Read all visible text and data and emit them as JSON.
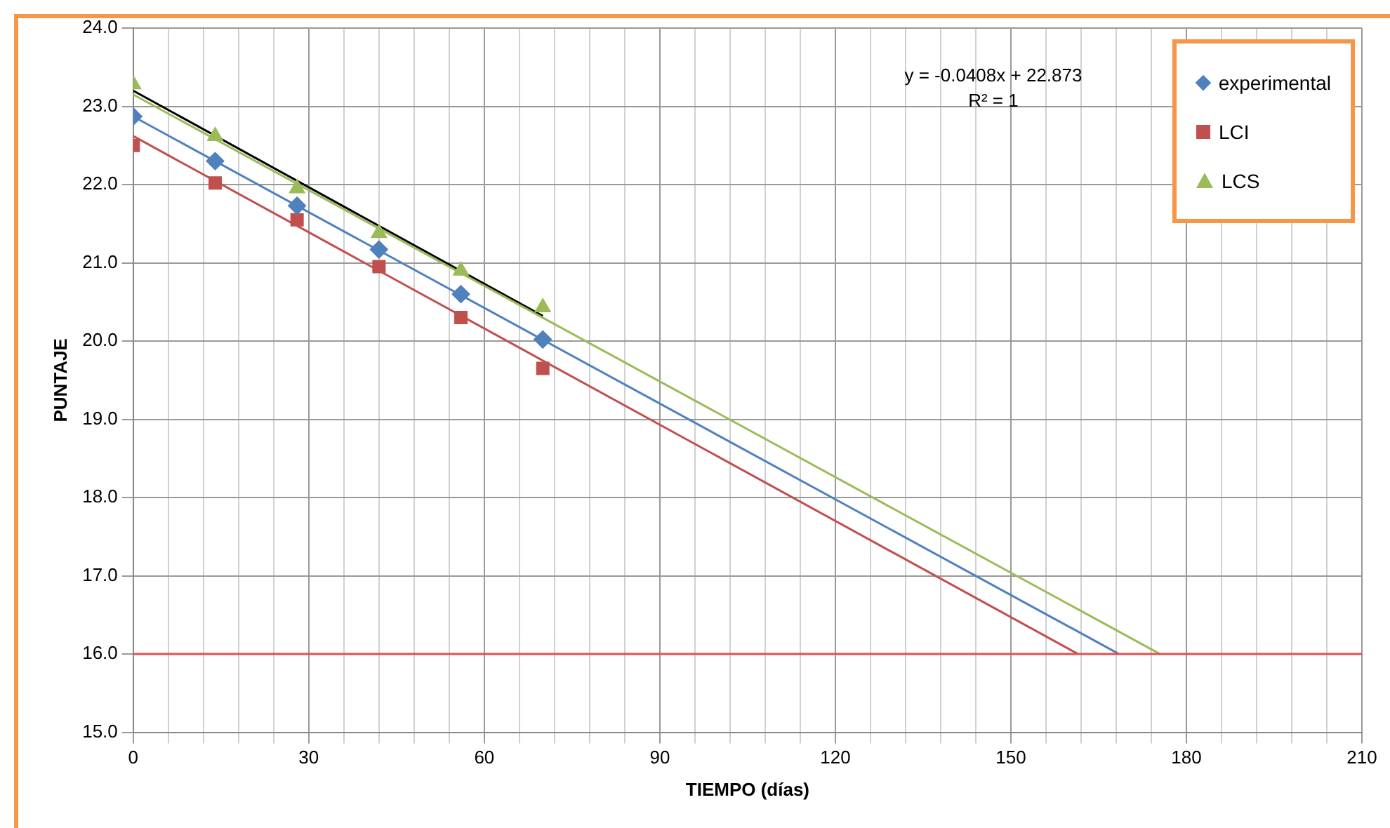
{
  "chart_data": {
    "type": "scatter",
    "xlabel": "TIEMPO (días)",
    "ylabel": "PUNTAJE",
    "xlim": [
      0,
      210
    ],
    "xticks": [
      0,
      {
        "value": 6,
        "label": null
      },
      {
        "value": 12,
        "label": null
      },
      {
        "value": 18,
        "label": null
      },
      {
        "value": 24,
        "label": null
      },
      30,
      {
        "value": 36,
        "label": null
      },
      {
        "value": 42,
        "label": null
      },
      {
        "value": 48,
        "label": null
      },
      {
        "value": 54,
        "label": null
      },
      60,
      {
        "value": 66,
        "label": null
      },
      {
        "value": 72,
        "label": null
      },
      {
        "value": 78,
        "label": null
      },
      {
        "value": 84,
        "label": null
      },
      90,
      {
        "value": 96,
        "label": null
      },
      {
        "value": 102,
        "label": null
      },
      {
        "value": 108,
        "label": null
      },
      {
        "value": 114,
        "label": null
      },
      120,
      {
        "value": 126,
        "label": null
      },
      {
        "value": 132,
        "label": null
      },
      {
        "value": 138,
        "label": null
      },
      {
        "value": 144,
        "label": null
      },
      150,
      {
        "value": 156,
        "label": null
      },
      {
        "value": 162,
        "label": null
      },
      {
        "value": 168,
        "label": null
      },
      {
        "value": 174,
        "label": null
      },
      180,
      {
        "value": 186,
        "label": null
      },
      {
        "value": 192,
        "label": null
      },
      {
        "value": 198,
        "label": null
      },
      {
        "value": 204,
        "label": null
      },
      210
    ],
    "ylim": [
      15,
      24
    ],
    "yticks": [
      {
        "value": 15,
        "label": "15.0"
      },
      {
        "value": 16,
        "label": "16.0"
      },
      {
        "value": 17,
        "label": "17.0"
      },
      {
        "value": 18,
        "label": "18.0"
      },
      {
        "value": 19,
        "label": "19.0"
      },
      {
        "value": 20,
        "label": "20.0"
      },
      {
        "value": 21,
        "label": "21.0"
      },
      {
        "value": 22,
        "label": "22.0"
      },
      {
        "value": 23,
        "label": "23.0"
      },
      {
        "value": 24,
        "label": "24.0"
      }
    ],
    "grid": true,
    "legend": "top right",
    "annotations": [
      "y = -0.0408x + 22.873",
      "R² = 1"
    ],
    "ref_lines": [
      {
        "axis": "y",
        "value": 16,
        "label": null,
        "color": "#e05050"
      }
    ],
    "series": [
      {
        "name": "experimental",
        "marker": "diamond",
        "color": "#4f81bd",
        "x": [
          0,
          14,
          28,
          42,
          56,
          70
        ],
        "values": [
          22.87,
          22.3,
          21.73,
          21.17,
          20.6,
          20.02
        ]
      },
      {
        "name": "LCI",
        "marker": "square",
        "color": "#c0504d",
        "x": [
          0,
          14,
          28,
          42,
          56,
          70
        ],
        "values": [
          22.5,
          22.02,
          21.55,
          20.95,
          20.3,
          19.65
        ]
      },
      {
        "name": "LCS",
        "marker": "triangle",
        "color": "#9bbb59",
        "x": [
          0,
          14,
          28,
          42,
          56,
          70
        ],
        "values": [
          23.28,
          22.62,
          21.95,
          21.38,
          20.9,
          20.43
        ]
      },
      {
        "type": "line",
        "marker": "none",
        "color": "#4f81bd",
        "x": [
          0,
          168.5
        ],
        "values": [
          22.87,
          16.0
        ]
      },
      {
        "type": "line",
        "marker": "none",
        "color": "#c0504d",
        "x": [
          0,
          161.5
        ],
        "values": [
          22.62,
          16.0
        ]
      },
      {
        "type": "line",
        "marker": "none",
        "color": "#9bbb59",
        "x": [
          0,
          175.5
        ],
        "values": [
          23.15,
          16.0
        ]
      },
      {
        "type": "line",
        "marker": "none",
        "color": "#000000",
        "x": [
          0,
          70
        ],
        "values": [
          23.2,
          20.32
        ]
      }
    ]
  }
}
